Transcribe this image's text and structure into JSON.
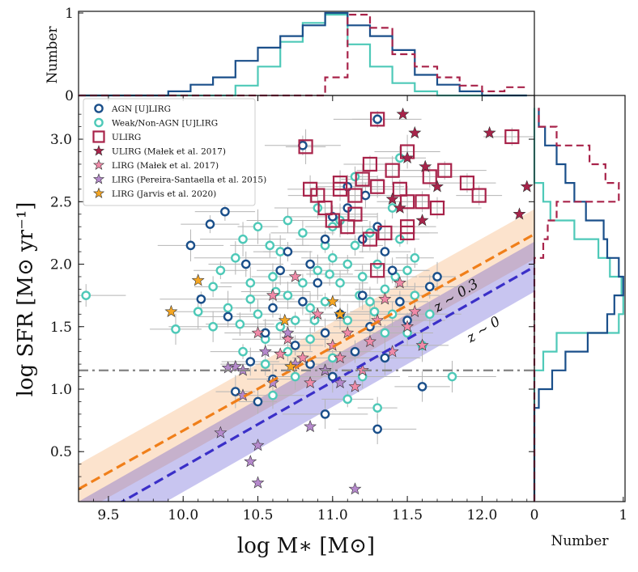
{
  "chart_data": {
    "type": "scatter",
    "title": "",
    "xlabel": "log M∗ [M⊙]",
    "ylabel": "log SFR [M⊙ yr⁻¹]",
    "xlim": [
      9.3,
      12.35
    ],
    "ylim": [
      0.1,
      3.35
    ],
    "x_ticks": [
      "9.5",
      "10.0",
      "10.5",
      "11.0",
      "11.5",
      "12.0"
    ],
    "y_ticks": [
      "0.5",
      "1.0",
      "1.5",
      "2.0",
      "2.5",
      "3.0"
    ],
    "colors": {
      "agn": "#1a4f8a",
      "weak": "#4ec9b8",
      "ulirg": "#a8234a",
      "malek_ulirg": "#a8234a",
      "malek_lirg": "#f08aa8",
      "pereira": "#b589cc",
      "jarvis": "#f5a623",
      "ms_z03": "#f07f1a",
      "ms_z0": "#3a2fc8",
      "threshold": "#888888"
    },
    "legend": {
      "placement": "upper-left",
      "entries": [
        "AGN [U]LIRG",
        "Weak/Non-AGN [U]LIRG",
        "ULIRG",
        "ULIRG (Małek et al. 2017)",
        "LIRG (Małek et al. 2017)",
        "LIRG (Pereira-Santaella et al. 2015)",
        "LIRG (Jarvis et al. 2020)"
      ]
    },
    "annotations": {
      "z03": "z ~ 0.3",
      "z0": "z ~ 0"
    },
    "main_sequence": {
      "z03": {
        "x": [
          9.3,
          12.35
        ],
        "y": [
          0.2,
          2.24
        ]
      },
      "z0": {
        "x": [
          9.3,
          12.35
        ],
        "y": [
          -0.1,
          1.98
        ]
      },
      "band_halfwidth": 0.2
    },
    "threshold_line": {
      "y": 1.15
    },
    "series": [
      {
        "name": "AGN [U]LIRG",
        "points": [
          [
            10.05,
            2.15
          ],
          [
            10.18,
            2.32
          ],
          [
            10.28,
            2.42
          ],
          [
            10.12,
            1.72
          ],
          [
            10.3,
            1.58
          ],
          [
            10.45,
            1.22
          ],
          [
            10.35,
            0.98
          ],
          [
            10.5,
            0.9
          ],
          [
            10.95,
            0.8
          ],
          [
            11.3,
            0.68
          ],
          [
            11.6,
            1.02
          ],
          [
            11.7,
            1.9
          ],
          [
            11.5,
            1.55
          ],
          [
            11.65,
            1.82
          ],
          [
            10.85,
            2.0
          ],
          [
            10.95,
            2.2
          ],
          [
            11.0,
            2.38
          ],
          [
            11.1,
            2.45
          ],
          [
            11.2,
            2.2
          ],
          [
            11.35,
            2.1
          ],
          [
            11.4,
            1.95
          ],
          [
            11.2,
            1.75
          ],
          [
            11.05,
            1.6
          ],
          [
            10.9,
            1.85
          ],
          [
            10.7,
            2.1
          ],
          [
            10.6,
            1.65
          ],
          [
            10.55,
            1.45
          ],
          [
            10.75,
            1.35
          ],
          [
            10.85,
            1.2
          ],
          [
            11.0,
            1.1
          ],
          [
            11.15,
            1.3
          ],
          [
            11.25,
            1.5
          ],
          [
            11.45,
            1.7
          ],
          [
            10.65,
            1.95
          ],
          [
            10.8,
            1.7
          ],
          [
            10.42,
            2.0
          ],
          [
            10.95,
            1.45
          ],
          [
            11.3,
            2.3
          ],
          [
            10.8,
            2.95
          ],
          [
            11.3,
            3.16
          ],
          [
            11.1,
            2.62
          ],
          [
            11.22,
            2.55
          ],
          [
            11.35,
            1.25
          ],
          [
            10.6,
            1.08
          ]
        ]
      },
      {
        "name": "Weak/Non-AGN [U]LIRG",
        "points": [
          [
            9.35,
            1.75
          ],
          [
            9.95,
            1.48
          ],
          [
            10.1,
            1.62
          ],
          [
            10.2,
            1.82
          ],
          [
            10.25,
            1.95
          ],
          [
            10.35,
            2.05
          ],
          [
            10.4,
            2.2
          ],
          [
            10.45,
            1.85
          ],
          [
            10.5,
            1.6
          ],
          [
            10.55,
            1.4
          ],
          [
            10.6,
            1.9
          ],
          [
            10.65,
            2.1
          ],
          [
            10.7,
            1.75
          ],
          [
            10.75,
            1.55
          ],
          [
            10.8,
            2.25
          ],
          [
            10.85,
            1.65
          ],
          [
            10.9,
            1.95
          ],
          [
            10.95,
            1.7
          ],
          [
            11.0,
            2.05
          ],
          [
            11.05,
            1.85
          ],
          [
            11.1,
            1.55
          ],
          [
            11.15,
            2.15
          ],
          [
            11.2,
            1.9
          ],
          [
            11.25,
            1.7
          ],
          [
            11.3,
            2.0
          ],
          [
            11.35,
            1.8
          ],
          [
            11.4,
            1.6
          ],
          [
            11.45,
            2.2
          ],
          [
            11.5,
            1.45
          ],
          [
            11.55,
            1.75
          ],
          [
            11.6,
            1.35
          ],
          [
            11.8,
            1.1
          ],
          [
            10.4,
            1.3
          ],
          [
            10.55,
            1.2
          ],
          [
            10.7,
            1.3
          ],
          [
            10.85,
            1.4
          ],
          [
            11.0,
            1.25
          ],
          [
            11.2,
            1.1
          ],
          [
            11.3,
            0.85
          ],
          [
            10.6,
            0.95
          ],
          [
            10.7,
            2.35
          ],
          [
            10.9,
            2.45
          ],
          [
            11.0,
            2.3
          ],
          [
            11.1,
            2.0
          ],
          [
            10.5,
            2.3
          ],
          [
            10.3,
            1.65
          ],
          [
            10.2,
            1.5
          ],
          [
            11.4,
            2.45
          ],
          [
            11.5,
            1.95
          ],
          [
            11.55,
            2.05
          ],
          [
            10.8,
            1.85
          ],
          [
            10.95,
            2.15
          ],
          [
            11.05,
            2.35
          ],
          [
            10.65,
            1.5
          ],
          [
            11.25,
            2.25
          ],
          [
            11.35,
            1.45
          ],
          [
            10.75,
            1.1
          ],
          [
            11.1,
            0.92
          ],
          [
            11.65,
            1.6
          ],
          [
            11.45,
            2.85
          ],
          [
            11.15,
            2.7
          ],
          [
            10.45,
            1.72
          ],
          [
            10.58,
            2.15
          ],
          [
            10.88,
            1.55
          ],
          [
            11.18,
            1.75
          ],
          [
            11.42,
            1.9
          ],
          [
            10.62,
            1.78
          ],
          [
            10.98,
            1.92
          ],
          [
            11.28,
            1.62
          ],
          [
            10.38,
            1.52
          ]
        ]
      },
      {
        "name": "ULIRG",
        "points": [
          [
            10.82,
            2.94
          ],
          [
            11.3,
            3.16
          ],
          [
            11.25,
            2.8
          ],
          [
            11.4,
            2.75
          ],
          [
            11.5,
            2.9
          ],
          [
            11.65,
            2.7
          ],
          [
            11.75,
            2.75
          ],
          [
            11.9,
            2.65
          ],
          [
            11.98,
            2.55
          ],
          [
            12.2,
            3.02
          ],
          [
            11.05,
            2.6
          ],
          [
            11.15,
            2.55
          ],
          [
            11.2,
            2.68
          ],
          [
            11.3,
            2.62
          ],
          [
            11.45,
            2.6
          ],
          [
            11.5,
            2.5
          ],
          [
            11.6,
            2.5
          ],
          [
            11.7,
            2.45
          ],
          [
            10.9,
            2.55
          ],
          [
            10.95,
            2.45
          ],
          [
            11.0,
            2.35
          ],
          [
            11.35,
            2.25
          ],
          [
            11.5,
            2.25
          ],
          [
            11.25,
            2.2
          ],
          [
            11.15,
            2.4
          ],
          [
            10.85,
            2.6
          ],
          [
            11.05,
            2.65
          ],
          [
            11.1,
            2.3
          ],
          [
            11.3,
            1.95
          ],
          [
            11.5,
            2.3
          ]
        ]
      },
      {
        "name": "ULIRG (Małek et al. 2017)",
        "points": [
          [
            11.47,
            3.2
          ],
          [
            11.55,
            3.05
          ],
          [
            11.5,
            2.85
          ],
          [
            11.62,
            2.78
          ],
          [
            11.7,
            2.62
          ],
          [
            12.05,
            3.05
          ],
          [
            12.3,
            2.62
          ],
          [
            12.25,
            2.4
          ],
          [
            11.45,
            2.45
          ],
          [
            11.6,
            2.35
          ],
          [
            11.4,
            2.52
          ]
        ]
      },
      {
        "name": "LIRG (Małek et al. 2017)",
        "points": [
          [
            10.6,
            1.75
          ],
          [
            10.7,
            1.4
          ],
          [
            10.8,
            1.25
          ],
          [
            10.9,
            1.6
          ],
          [
            11.0,
            1.35
          ],
          [
            11.1,
            1.45
          ],
          [
            11.2,
            1.15
          ],
          [
            11.3,
            1.55
          ],
          [
            11.4,
            1.3
          ],
          [
            11.5,
            1.5
          ],
          [
            11.55,
            1.62
          ],
          [
            11.6,
            1.35
          ],
          [
            11.45,
            1.85
          ],
          [
            10.75,
            1.9
          ],
          [
            10.85,
            1.05
          ],
          [
            10.95,
            1.15
          ],
          [
            11.05,
            1.25
          ],
          [
            11.15,
            1.02
          ],
          [
            10.65,
            1.28
          ],
          [
            10.5,
            1.45
          ],
          [
            11.25,
            1.38
          ],
          [
            11.35,
            1.72
          ]
        ]
      },
      {
        "name": "LIRG (Pereira-Santaella et al. 2015)",
        "points": [
          [
            10.35,
            1.18
          ],
          [
            10.4,
            0.95
          ],
          [
            10.25,
            0.65
          ],
          [
            10.45,
            0.42
          ],
          [
            10.5,
            0.55
          ],
          [
            10.5,
            0.25
          ],
          [
            10.4,
            1.15
          ],
          [
            10.55,
            1.3
          ],
          [
            10.7,
            1.45
          ],
          [
            10.85,
            0.7
          ],
          [
            10.95,
            1.15
          ],
          [
            11.05,
            1.05
          ],
          [
            11.15,
            0.2
          ],
          [
            10.6,
            1.05
          ],
          [
            10.75,
            1.2
          ],
          [
            10.3,
            1.17
          ]
        ]
      },
      {
        "name": "LIRG (Jarvis et al. 2020)",
        "points": [
          [
            9.92,
            1.62
          ],
          [
            10.1,
            1.87
          ],
          [
            10.68,
            1.55
          ],
          [
            10.72,
            1.18
          ],
          [
            11.0,
            1.7
          ],
          [
            11.05,
            1.6
          ]
        ]
      }
    ],
    "hist_top": {
      "ylabel": "Number",
      "y_ticks": [
        "0",
        "1"
      ],
      "ylim": [
        0,
        1.02
      ],
      "edges": [
        9.3,
        9.45,
        9.6,
        9.75,
        9.9,
        10.05,
        10.2,
        10.35,
        10.5,
        10.65,
        10.8,
        10.95,
        11.1,
        11.25,
        11.4,
        11.55,
        11.7,
        11.85,
        12.0,
        12.15,
        12.3
      ],
      "agn": [
        0,
        0,
        0,
        0,
        0.05,
        0.13,
        0.22,
        0.42,
        0.58,
        0.72,
        0.85,
        1.0,
        0.85,
        0.72,
        0.55,
        0.25,
        0.13,
        0.05,
        0,
        0
      ],
      "weak": [
        0,
        0,
        0,
        0,
        0,
        0,
        0,
        0.12,
        0.35,
        0.65,
        0.88,
        0.98,
        0.62,
        0.35,
        0.15,
        0.05,
        0,
        0,
        0,
        0
      ],
      "ulirg": [
        0,
        0,
        0,
        0,
        0,
        0,
        0,
        0,
        0,
        0,
        0,
        0.22,
        0.98,
        0.82,
        0.5,
        0.35,
        0.22,
        0.12,
        0.05,
        0.1
      ]
    },
    "hist_right": {
      "xlabel": "Number",
      "x_ticks": [
        "0",
        "1"
      ],
      "xlim": [
        0,
        1.02
      ],
      "edges": [
        0.1,
        0.25,
        0.4,
        0.55,
        0.7,
        0.85,
        1.0,
        1.15,
        1.3,
        1.45,
        1.6,
        1.75,
        1.9,
        2.05,
        2.2,
        2.35,
        2.5,
        2.65,
        2.8,
        2.95,
        3.1,
        3.25
      ],
      "agn": [
        0,
        0,
        0,
        0,
        0,
        0.05,
        0.2,
        0.35,
        0.6,
        0.82,
        0.9,
        1.0,
        0.95,
        0.82,
        0.78,
        0.58,
        0.45,
        0.35,
        0.25,
        0.12,
        0.05
      ],
      "weak": [
        0,
        0,
        0,
        0,
        0,
        0,
        0,
        0.1,
        0.25,
        0.95,
        1.0,
        0.98,
        0.85,
        0.72,
        0.45,
        0.18,
        0.1,
        0,
        0,
        0,
        0
      ],
      "ulirg": [
        0,
        0,
        0,
        0,
        0,
        0,
        0,
        0,
        0,
        0,
        0,
        0,
        0,
        0.1,
        0.15,
        0.25,
        0.95,
        0.8,
        0.62,
        0.25,
        0.05
      ]
    }
  }
}
